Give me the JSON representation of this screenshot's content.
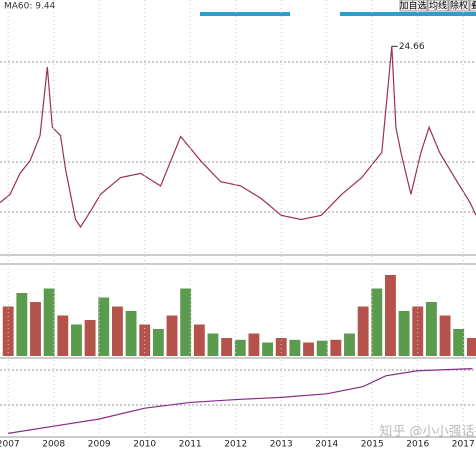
{
  "toolbar": {
    "buttons": [
      "加自选",
      "均线",
      "除权",
      "叠"
    ]
  },
  "ma_label": "MA60: 9.44",
  "watermark": "知乎 @小小强话投资",
  "chart_data": [
    {
      "type": "line",
      "color": "#9b2f5e",
      "x": [
        2006.82,
        2007.04,
        2007.26,
        2007.48,
        2007.7,
        2007.86,
        2007.97,
        2008.15,
        2008.26,
        2008.48,
        2008.59,
        2008.81,
        2009.03,
        2009.47,
        2009.91,
        2010.35,
        2010.79,
        2011.23,
        2011.67,
        2012.11,
        2012.56,
        2013.0,
        2013.44,
        2013.88,
        2014.33,
        2014.77,
        2015.21,
        2015.43,
        2015.52,
        2015.63,
        2015.85,
        2016.07,
        2016.25,
        2016.48,
        2016.81,
        2017.15,
        2017.28
      ],
      "values": [
        6.0,
        7,
        9.5,
        11,
        14,
        22.2,
        15,
        14,
        10,
        4,
        3.1,
        5,
        7,
        9,
        9.5,
        8,
        13.9,
        11,
        8.5,
        8,
        6.5,
        4.5,
        4,
        4.5,
        7,
        9,
        12,
        24.66,
        15,
        12,
        7,
        12,
        15,
        12,
        9,
        6,
        4.5
      ],
      "xlim": [
        2006.82,
        2017.28
      ],
      "ylim": [
        0,
        27.8
      ]
    },
    {
      "type": "bar",
      "color": "#a8342c",
      "x": [
        2007.0,
        2007.3,
        2007.6,
        2007.9,
        2008.2,
        2008.5,
        2008.8,
        2009.1,
        2009.4,
        2009.7,
        2010.0,
        2010.3,
        2010.6,
        2010.9,
        2011.2,
        2011.5,
        2011.8,
        2012.1,
        2012.4,
        2012.7,
        2013.0,
        2013.3,
        2013.6,
        2013.9,
        2014.2,
        2014.5,
        2014.8,
        2015.1,
        2015.4,
        2015.7,
        2016.0,
        2016.3,
        2016.6,
        2016.9,
        2017.2
      ],
      "values": [
        55,
        70,
        60,
        75,
        45,
        35,
        40,
        65,
        55,
        50,
        35,
        30,
        45,
        75,
        35,
        25,
        20,
        18,
        25,
        15,
        20,
        18,
        15,
        17,
        18,
        25,
        55,
        75,
        90,
        50,
        55,
        60,
        45,
        30,
        20
      ],
      "xlim": [
        2006.82,
        2017.28
      ],
      "ylim": [
        0,
        100
      ]
    },
    {
      "type": "line",
      "color": "#8a2a8a",
      "x": [
        2007,
        2008,
        2009,
        2010,
        2011,
        2012,
        2013,
        2014,
        2014.8,
        2015.3,
        2016,
        2017.2
      ],
      "values": [
        5,
        15,
        25,
        40,
        48,
        52,
        55,
        60,
        70,
        85,
        92,
        95
      ],
      "xlim": [
        2006.82,
        2017.28
      ],
      "ylim": [
        0,
        100
      ],
      "xticks": [
        2007,
        2008,
        2009,
        2010,
        2011,
        2012,
        2013,
        2014,
        2015,
        2016,
        2017
      ]
    }
  ]
}
